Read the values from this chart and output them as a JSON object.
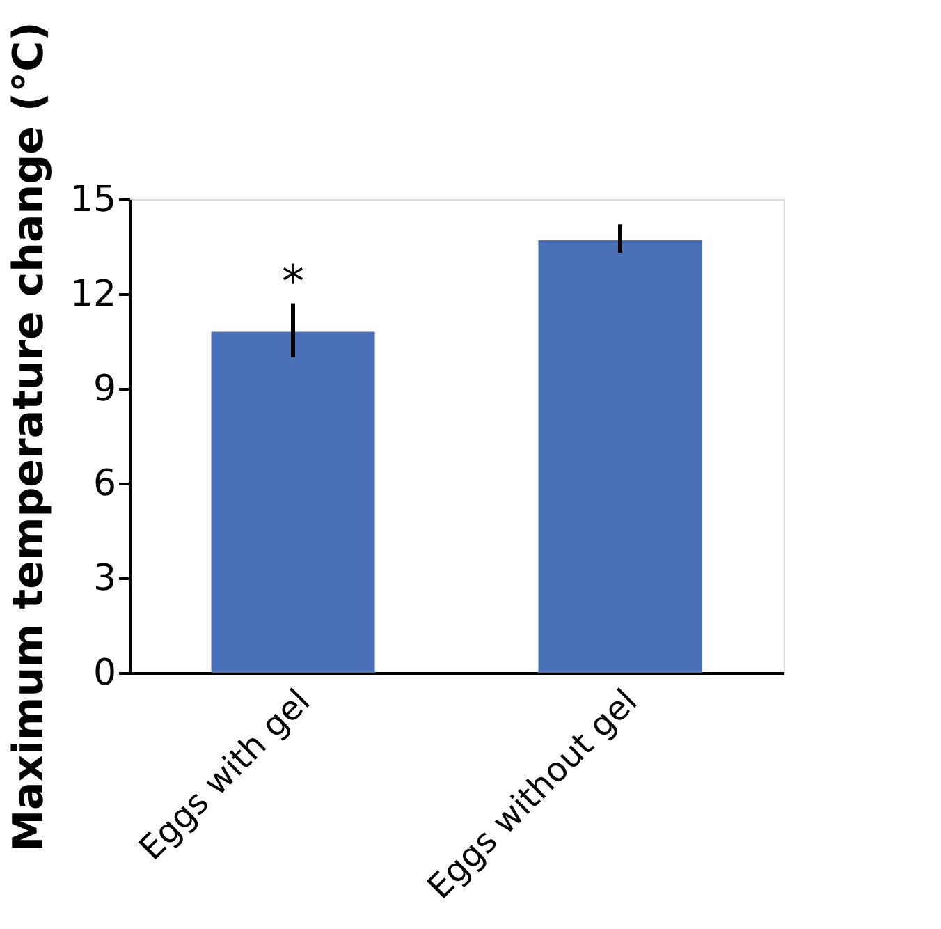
{
  "chart_data": {
    "type": "bar",
    "ylabel": "Maximum temperature change (°C)",
    "categories": [
      "Eggs with gel",
      "Eggs without gel"
    ],
    "values": [
      10.8,
      13.7
    ],
    "color": "#4a70b8",
    "errors": [
      [
        10.0,
        11.7
      ],
      [
        13.3,
        14.2
      ]
    ],
    "ylim": [
      0,
      15
    ],
    "yticks": [
      0,
      3,
      6,
      9,
      12,
      15
    ],
    "grid": false,
    "annotations": [
      "*"
    ]
  }
}
